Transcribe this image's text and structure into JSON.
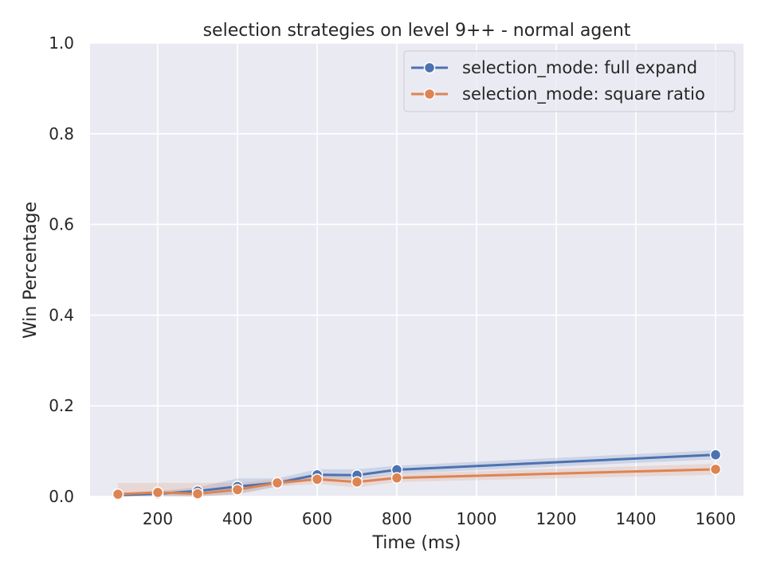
{
  "chart_data": {
    "type": "line",
    "title": "selection strategies on level 9++ - normal agent",
    "xlabel": "Time (ms)",
    "ylabel": "Win Percentage",
    "xlim": [
      30,
      1670
    ],
    "ylim": [
      0.0,
      1.0
    ],
    "x_ticks": [
      200,
      400,
      600,
      800,
      1000,
      1200,
      1400,
      1600
    ],
    "x_tick_labels": [
      "200",
      "400",
      "600",
      "800",
      "1000",
      "1200",
      "1400",
      "1600"
    ],
    "y_ticks": [
      0.0,
      0.2,
      0.4,
      0.6,
      0.8,
      1.0
    ],
    "y_tick_labels": [
      "0.0",
      "0.2",
      "0.4",
      "0.6",
      "0.8",
      "1.0"
    ],
    "grid": true,
    "legend_position": "top-right",
    "x": [
      100,
      200,
      300,
      400,
      500,
      600,
      700,
      800,
      1600
    ],
    "series": [
      {
        "name": "selection_mode: full expand",
        "color": "#4c72b0",
        "values": [
          0.003,
          0.006,
          0.012,
          0.022,
          0.03,
          0.048,
          0.047,
          0.059,
          0.092
        ],
        "ci_low": [
          0.0,
          0.0,
          0.0,
          0.005,
          0.022,
          0.04,
          0.038,
          0.05,
          0.082
        ],
        "ci_high": [
          0.008,
          0.012,
          0.02,
          0.04,
          0.04,
          0.06,
          0.06,
          0.068,
          0.102
        ]
      },
      {
        "name": "selection_mode: square ratio",
        "color": "#dd8452",
        "values": [
          0.005,
          0.009,
          0.006,
          0.015,
          0.03,
          0.038,
          0.032,
          0.041,
          0.06
        ],
        "ci_low": [
          0.0,
          0.002,
          0.0,
          0.005,
          0.022,
          0.028,
          0.02,
          0.032,
          0.048
        ],
        "ci_high": [
          0.03,
          0.03,
          0.03,
          0.03,
          0.038,
          0.048,
          0.042,
          0.05,
          0.072
        ]
      }
    ]
  }
}
